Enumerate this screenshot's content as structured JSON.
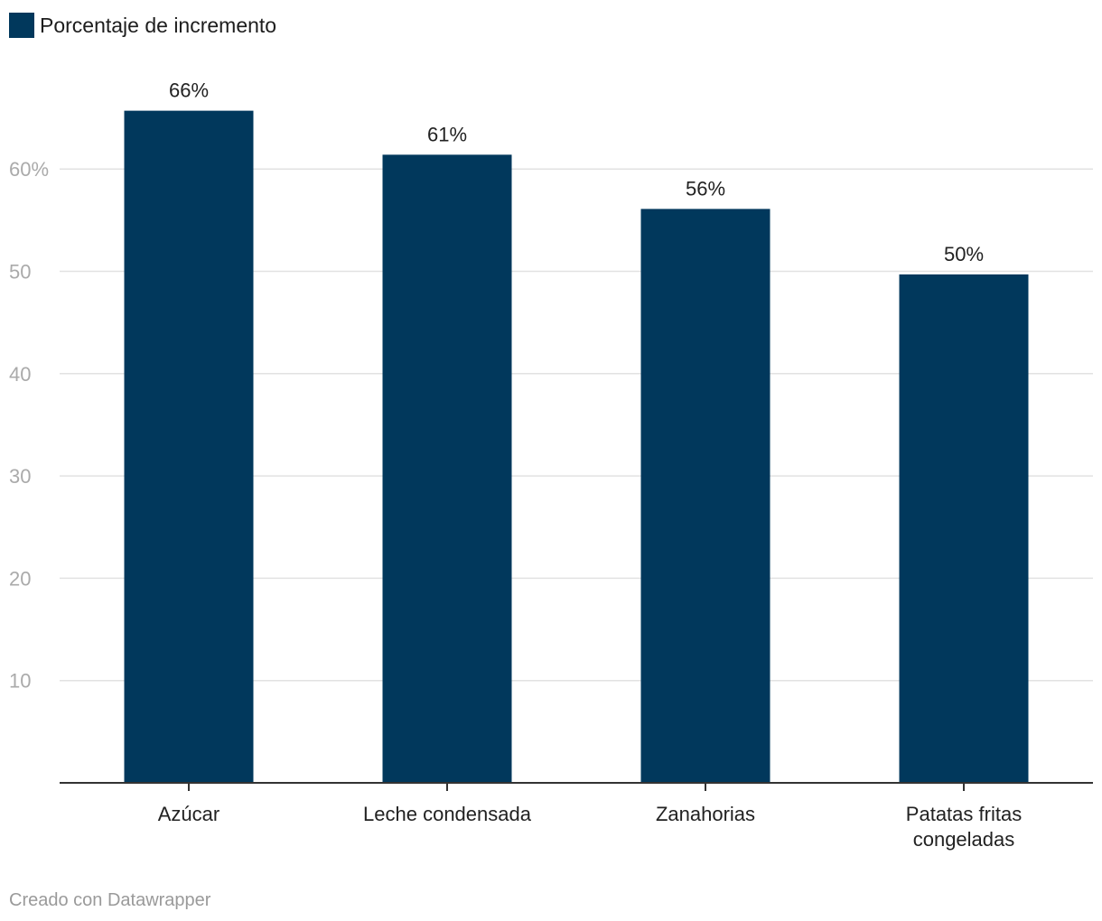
{
  "chart_data": {
    "type": "bar",
    "categories": [
      "Azúcar",
      "Leche condensada",
      "Zanahorias",
      "Patatas fritas congeladas"
    ],
    "category_lines": [
      [
        "Azúcar"
      ],
      [
        "Leche condensada"
      ],
      [
        "Zanahorias"
      ],
      [
        "Patatas fritas",
        "congeladas"
      ]
    ],
    "series": [
      {
        "name": "Porcentaje de incremento",
        "values": [
          65.7,
          61.4,
          56.1,
          49.7
        ],
        "labels": [
          "66%",
          "61%",
          "56%",
          "50%"
        ],
        "color": "#01385c"
      }
    ],
    "yticks": [
      10,
      20,
      30,
      40,
      50,
      60
    ],
    "ytick_labels": [
      "10",
      "20",
      "30",
      "40",
      "50",
      "60%"
    ],
    "ylim": [
      0,
      70
    ],
    "grid": true,
    "legend_position": "top-left",
    "title": "",
    "xlabel": "",
    "ylabel": ""
  },
  "footer": {
    "credit": "Creado con Datawrapper"
  }
}
